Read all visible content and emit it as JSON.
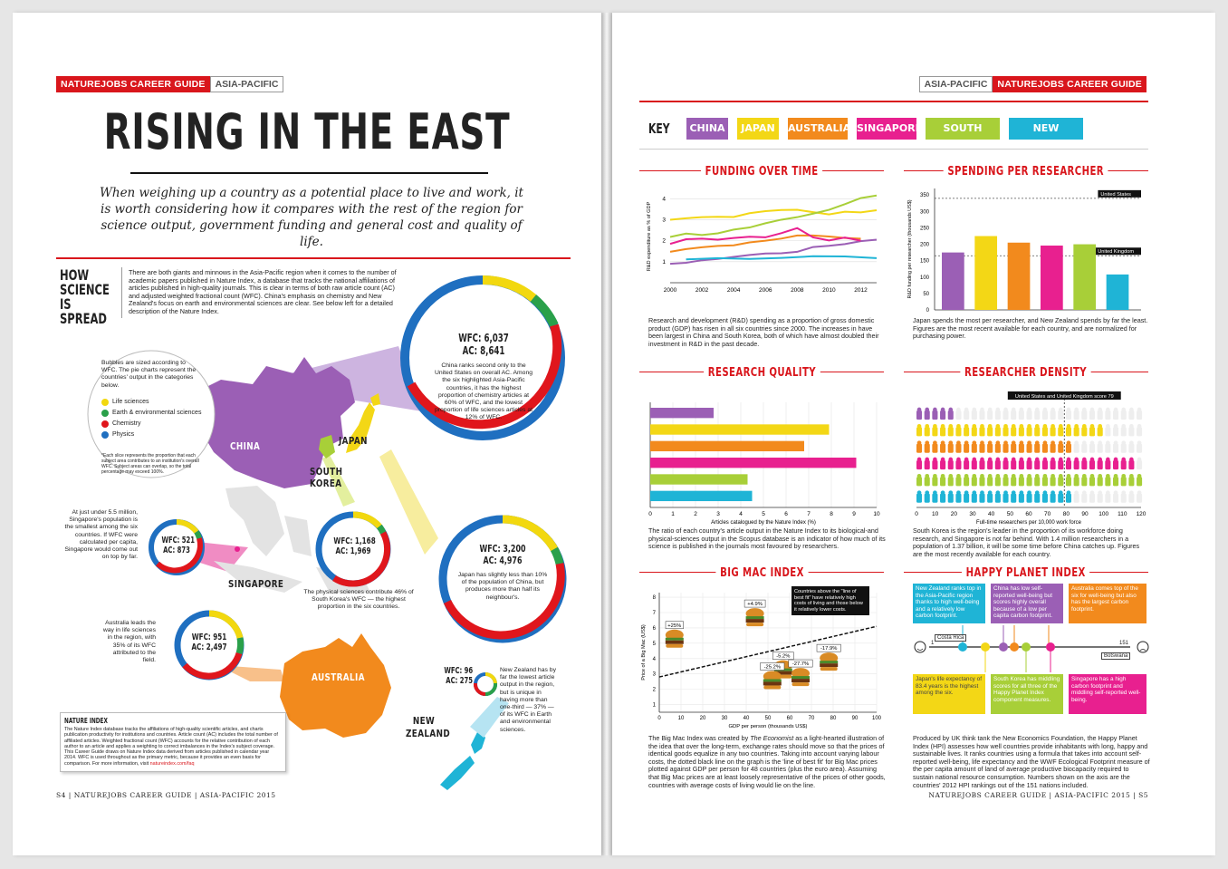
{
  "left": {
    "tag_main": "NATUREJOBS CAREER GUIDE",
    "tag_region": "ASIA-PACIFIC",
    "title": "RISING IN THE EAST",
    "deck": "When weighing up a country as a potential place to live and work, it is  worth considering how it compares with the rest of the region for science output, government funding and general cost and quality of life.",
    "section_head": "HOW SCIENCE IS SPREAD",
    "intro": "There are both giants and minnows in the Asia-Pacific region when it comes to the number of academic papers published in Nature Index, a database that tracks the national affiliations of articles published in high-quality journals. This is clear in terms of both raw article count (AC) and adjusted weighted fractional count (WFC). China's emphasis on chemistry and New Zealand's focus on earth and environmental sciences are clear. See below left for a detailed description of the Nature Index.",
    "legend": {
      "intro": "Bubbles are sized according to WFC. The pie charts represent the countries' output in the categories below.",
      "items": [
        {
          "label": "Life sciences",
          "color": "#f2d80f"
        },
        {
          "label": "Earth & environmental sciences",
          "color": "#2aa04a"
        },
        {
          "label": "Chemistry",
          "color": "#e0161c"
        },
        {
          "label": "Physics",
          "color": "#1f6fc0"
        }
      ],
      "note": "*Each slice represents the proportion that each subject area contributes to an institution's overall WFC. Subject areas can overlap, so the total percentage may exceed 100%."
    },
    "china": {
      "name": "CHINA",
      "wfc": "WFC: 6,037",
      "ac": "AC: 8,641",
      "text": "China ranks second only to the United States on overall AC. Among the six highlighted Asia-Pacific countries, it has the highest proportion of chemistry articles at 60% of WFC, and the lowest proportion of life sciences articles at 12% of WFC."
    },
    "japan": {
      "name": "JAPAN",
      "wfc": "WFC: 3,200",
      "ac": "AC: 4,976",
      "text": "Japan has slightly less than 10% of the population of China, but produces more than half its neighbour's."
    },
    "korea": {
      "name": "SOUTH KOREA",
      "wfc": "WFC: 1,168",
      "ac": "AC: 1,969",
      "text": "The physical sciences contribute 46% of South Korea's WFC — the highest proportion in the six countries."
    },
    "singapore": {
      "name": "SINGAPORE",
      "wfc": "WFC: 521",
      "ac": "AC: 873",
      "text": "At just under 5.5 million, Singapore's population is the smallest among the six countries. If WFC were calculated per capita, Singapore would come out on top by far."
    },
    "australia": {
      "name": "AUSTRALIA",
      "wfc": "WFC: 951",
      "ac": "AC: 2,497",
      "text": "Australia leads the way in life sciences in the region, with 35% of its WFC attributed to the field."
    },
    "nz": {
      "name": "NEW ZEALAND",
      "wfc": "WFC: 96",
      "ac": "AC: 275",
      "text": "New Zealand has by far the lowest article output in the region, but is unique in having more than one-third — 37% — of its WFC in Earth and environmental sciences."
    },
    "nature_index": {
      "head": "NATURE INDEX",
      "text": "The Nature Index database tracks the affiliations of high-quality scientific articles, and charts publication productivity for institutions and countries. Article count (AC) includes the total number of affiliated articles. Weighted fractional count (WFC) accounts for the relative contribution of each author to an article and applies a weighting to correct imbalances in the Index's subject coverage. This Career Guide draws on Nature Index data derived from articles published in calendar year 2014. WFC is used throughout as the primary metric, because it provides an even basis for comparison. For more information, visit ",
      "link": "natureindex.com/faq"
    },
    "folio": "S4 | NATUREJOBS CAREER GUIDE | ASIA-PACIFIC 2015"
  },
  "right": {
    "tag_region": "ASIA-PACIFIC",
    "tag_main": "NATUREJOBS CAREER GUIDE",
    "key_label": "KEY",
    "key": [
      {
        "label": "CHINA",
        "color": "#9b5fb5"
      },
      {
        "label": "JAPAN",
        "color": "#f3d716"
      },
      {
        "label": "AUSTRALIA",
        "color": "#f28a1d"
      },
      {
        "label": "SINGAPORE",
        "color": "#e8208f"
      },
      {
        "label": "SOUTH KOREA",
        "color": "#a8cf38"
      },
      {
        "label": "NEW ZEALAND",
        "color": "#1fb4d6"
      }
    ],
    "funding": {
      "head": "FUNDING OVER TIME",
      "ylabel": "R&D expenditure as % of GDP",
      "text": "Research and development (R&D) spending as a proportion of gross domestic product (GDP) has risen in all six countries since 2000. The increases in have been largest in China and South Korea, both of which have almost doubled their investment in R&D in the past decade."
    },
    "spending": {
      "head": "SPENDING PER RESEARCHER",
      "ylabel": "R&D funding per researcher (thousands US$)",
      "ref_us": "United States",
      "ref_uk": "United Kingdom",
      "text": "Japan spends the most per researcher, and New Zealand spends by far the least. Figures are the most recent available for each country, and are normalized for purchasing power."
    },
    "quality": {
      "head": "RESEARCH QUALITY",
      "xlabel": "Articles catalogued by the Nature Index (%)",
      "text": "The ratio of each country's article output in the Nature Index to its biological-and physical-sciences output in the Scopus database is an indicator of how much of its science is published in the journals most favoured by researchers."
    },
    "density": {
      "head": "RESEARCHER DENSITY",
      "xlabel": "Full-time researchers per 10,000 work force",
      "banner": "United States and United Kingdom score 79",
      "text": "South Korea is the region's leader in the proportion of its workforce doing research, and Singapore is not far behind. With 1.4 million researchers in a population of 1.37 billion, it will be some time before China catches up. Figures are the most recently available for each country."
    },
    "bigmac": {
      "head": "BIG MAC INDEX",
      "ylabel": "Price of a Big Mac (US$)",
      "xlabel": "GDP per person (thousands US$)",
      "note": "Countries above the \"line of best fit\" have relatively high costs of living and those below it relatively lower costs.",
      "text_pre": "The Big Mac Index was created by ",
      "text_em": "The Economist",
      "text_post": " as a light-hearted illustration of the idea that over the long-term, exchange rates should move so that the prices of identical goods equalize in any two countries. Taking into account varying labour costs, the dotted black line on the graph is the 'line of best fit' for Big Mac prices plotted against GDP per person for 48 countries (plus the euro area). Assuming that Big Mac prices are at least loosely representative of the prices of other goods, countries with average costs of living would lie on the line."
    },
    "hpi": {
      "head": "HAPPY PLANET INDEX",
      "costa": "Costa Rica",
      "botswana": "Botswana",
      "start": "1",
      "end": "151",
      "boxes_top": [
        {
          "text": "New Zealand ranks top in the Asia-Pacific region thanks to high well-being and a relatively low carbon footprint.",
          "color": "#1fb4d6"
        },
        {
          "text": "China has low self-reported well-being but scores highly overall because of a low per capita carbon footprint.",
          "color": "#9b5fb5"
        },
        {
          "text": "Australia comes top of the six for well-being but also has the largest carbon footprint.",
          "color": "#f28a1d"
        }
      ],
      "boxes_bottom": [
        {
          "text": "Japan's life expectancy of 83.4 years is the highest among the six.",
          "color": "#f3d716"
        },
        {
          "text": "South Korea has middling scores for all three of the Happy Planet Index component measures.",
          "color": "#a8cf38"
        },
        {
          "text": "Singapore has a high carbon footprint and middling self-reported well-being.",
          "color": "#e8208f"
        }
      ],
      "text": "Produced by UK think tank the New Economics Foundation, the Happy Planet Index (HPI) assesses how well countries provide inhabitants with long, happy and sustainable lives. It ranks countries using a formula that takes into account self-reported well-being, life expectancy and the WWF Ecological Footprint measure of the per capita amount of land of average productive biocapacity required to sustain national resource consumption. Numbers shown on the axis are the countries' 2012 HPI rankings out of the 151 nations included."
    },
    "folio": "NATUREJOBS CAREER GUIDE | ASIA-PACIFIC 2015 | S5"
  },
  "chart_data": [
    {
      "type": "line",
      "title": "FUNDING OVER TIME",
      "ylabel": "R&D expenditure as % of GDP",
      "x": [
        2000,
        2001,
        2002,
        2003,
        2004,
        2005,
        2006,
        2007,
        2008,
        2009,
        2010,
        2011,
        2012,
        2013
      ],
      "xticks": [
        2000,
        2002,
        2004,
        2006,
        2008,
        2010,
        2012
      ],
      "yticks": [
        1,
        2,
        3,
        4
      ],
      "ylim": [
        0,
        4.4
      ],
      "xlim": [
        2000,
        2013
      ],
      "series": [
        {
          "name": "CHINA",
          "color": "#9b5fb5",
          "values": [
            0.9,
            0.95,
            1.07,
            1.13,
            1.23,
            1.32,
            1.39,
            1.4,
            1.47,
            1.7,
            1.76,
            1.84,
            1.98,
            2.05
          ]
        },
        {
          "name": "JAPAN",
          "color": "#f3d716",
          "values": [
            3.0,
            3.07,
            3.12,
            3.14,
            3.13,
            3.31,
            3.41,
            3.46,
            3.47,
            3.36,
            3.25,
            3.38,
            3.35,
            3.45
          ]
        },
        {
          "name": "AUSTRALIA",
          "color": "#f28a1d",
          "values": [
            1.47,
            1.6,
            1.69,
            1.75,
            1.78,
            1.92,
            2.0,
            2.1,
            2.25,
            2.25,
            2.2,
            2.13,
            2.1,
            null
          ]
        },
        {
          "name": "SINGAPORE",
          "color": "#e8208f",
          "values": [
            1.85,
            2.07,
            2.1,
            2.05,
            2.13,
            2.19,
            2.16,
            2.36,
            2.6,
            2.16,
            2.01,
            2.15,
            2.0,
            null
          ]
        },
        {
          "name": "SOUTH KOREA",
          "color": "#a8cf38",
          "values": [
            2.18,
            2.34,
            2.27,
            2.35,
            2.53,
            2.63,
            2.83,
            3.0,
            3.12,
            3.29,
            3.47,
            3.74,
            4.03,
            4.15
          ]
        },
        {
          "name": "NEW ZEALAND",
          "color": "#1fb4d6",
          "values": [
            null,
            1.11,
            null,
            1.17,
            null,
            1.13,
            null,
            1.18,
            null,
            1.26,
            null,
            1.25,
            null,
            1.17
          ]
        }
      ]
    },
    {
      "type": "bar",
      "title": "SPENDING PER RESEARCHER",
      "ylabel": "R&D funding per researcher (thousands US$)",
      "categories": [
        "CHINA",
        "JAPAN",
        "AUSTRALIA",
        "SINGAPORE",
        "SOUTH KOREA",
        "NEW ZEALAND"
      ],
      "values": [
        175,
        225,
        205,
        196,
        200,
        108
      ],
      "colors": [
        "#9b5fb5",
        "#f3d716",
        "#f28a1d",
        "#e8208f",
        "#a8cf38",
        "#1fb4d6"
      ],
      "yticks": [
        0,
        50,
        100,
        150,
        200,
        250,
        300,
        350
      ],
      "ylim": [
        0,
        370
      ],
      "references": [
        {
          "label": "United States",
          "value": 340
        },
        {
          "label": "United Kingdom",
          "value": 165
        }
      ]
    },
    {
      "type": "bar",
      "orientation": "horizontal",
      "title": "RESEARCH QUALITY",
      "xlabel": "Articles catalogued by the Nature Index (%)",
      "categories": [
        "CHINA",
        "JAPAN",
        "AUSTRALIA",
        "SINGAPORE",
        "SOUTH KOREA",
        "NEW ZEALAND"
      ],
      "values": [
        2.8,
        7.9,
        6.8,
        9.1,
        4.3,
        4.5
      ],
      "colors": [
        "#9b5fb5",
        "#f3d716",
        "#f28a1d",
        "#e8208f",
        "#a8cf38",
        "#1fb4d6"
      ],
      "xticks": [
        0,
        1,
        2,
        3,
        4,
        5,
        6,
        7,
        8,
        9,
        10
      ],
      "xlim": [
        0,
        10
      ]
    },
    {
      "type": "bar",
      "orientation": "horizontal",
      "title": "RESEARCHER DENSITY",
      "xlabel": "Full-time researchers per 10,000 work force",
      "categories": [
        "CHINA",
        "JAPAN",
        "AUSTRALIA",
        "SINGAPORE",
        "SOUTH KOREA",
        "NEW ZEALAND"
      ],
      "values": [
        18,
        100,
        80,
        115,
        120,
        80
      ],
      "colors": [
        "#9b5fb5",
        "#f3d716",
        "#f28a1d",
        "#e8208f",
        "#a8cf38",
        "#1fb4d6"
      ],
      "xticks": [
        0,
        10,
        20,
        30,
        40,
        50,
        60,
        70,
        80,
        90,
        100,
        110,
        120
      ],
      "xlim": [
        0,
        120
      ],
      "reference": {
        "label": "United States and United Kingdom score 79",
        "value": 79
      }
    },
    {
      "type": "scatter",
      "title": "BIG MAC INDEX",
      "xlabel": "GDP per person (thousands US$)",
      "ylabel": "Price of a Big Mac (US$)",
      "xticks": [
        0,
        10,
        20,
        30,
        40,
        50,
        60,
        70,
        80,
        90,
        100
      ],
      "yticks": [
        1,
        2,
        3,
        4,
        5,
        6,
        7,
        8
      ],
      "xlim": [
        0,
        100
      ],
      "ylim": [
        0.5,
        8.3
      ],
      "best_fit": [
        [
          0,
          2.8
        ],
        [
          100,
          6.1
        ]
      ],
      "points": [
        {
          "label": "+25%",
          "x": 7,
          "y": 5.3
        },
        {
          "label": "+4.9%",
          "x": 44,
          "y": 6.7
        },
        {
          "label": "-5.2%",
          "x": 57,
          "y": 3.3
        },
        {
          "label": "-25.2%",
          "x": 52,
          "y": 2.6
        },
        {
          "label": "-27.7%",
          "x": 65,
          "y": 2.8
        },
        {
          "label": "-17.9%",
          "x": 78,
          "y": 3.8
        }
      ]
    }
  ]
}
